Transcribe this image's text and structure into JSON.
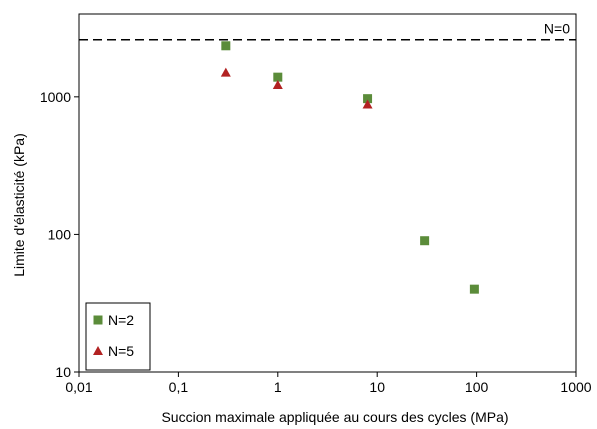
{
  "chart_data": {
    "type": "scatter",
    "xlabel": "Succion maximale appliquée au cours des cycles (MPa)",
    "ylabel": "Limite d'élasticité (kPa)",
    "x_scale": "log",
    "y_scale": "log",
    "xlim": [
      0.01,
      1000
    ],
    "ylim": [
      10,
      4000
    ],
    "x_ticks": [
      {
        "value": 0.01,
        "label": "0,01"
      },
      {
        "value": 0.1,
        "label": "0,1"
      },
      {
        "value": 1,
        "label": "1"
      },
      {
        "value": 10,
        "label": "10"
      },
      {
        "value": 100,
        "label": "100"
      },
      {
        "value": 1000,
        "label": "1000"
      }
    ],
    "y_ticks": [
      {
        "value": 10,
        "label": "10"
      },
      {
        "value": 100,
        "label": "100"
      },
      {
        "value": 1000,
        "label": "1000"
      }
    ],
    "grid": false,
    "legend_position": "bottom-left",
    "series": [
      {
        "name": "N=2",
        "marker": "square",
        "color": "#5B8C3A",
        "points": [
          {
            "x": 0.3,
            "y": 2350
          },
          {
            "x": 1,
            "y": 1390
          },
          {
            "x": 8,
            "y": 970
          },
          {
            "x": 30,
            "y": 90
          },
          {
            "x": 95,
            "y": 40
          }
        ]
      },
      {
        "name": "N=5",
        "marker": "triangle",
        "color": "#B22222",
        "points": [
          {
            "x": 0.3,
            "y": 1500
          },
          {
            "x": 1,
            "y": 1220
          },
          {
            "x": 8,
            "y": 880
          }
        ]
      }
    ],
    "reference_lines": [
      {
        "orientation": "horizontal",
        "y": 2600,
        "label": "N=0",
        "style": "dashed",
        "color": "#000000"
      }
    ]
  }
}
